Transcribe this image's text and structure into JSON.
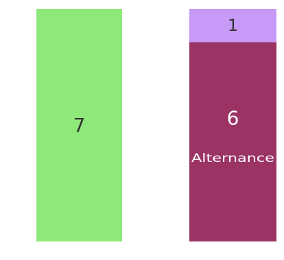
{
  "chart_data": {
    "type": "bar",
    "stacked": true,
    "categories": [
      "",
      ""
    ],
    "segments": [
      {
        "category": 0,
        "value": 7,
        "color": "#8fe87a",
        "value_label": "7",
        "label": "",
        "value_label_color": "#333333"
      },
      {
        "category": 1,
        "value": 6,
        "color": "#9b3465",
        "value_label": "6",
        "label": "Alternance",
        "value_label_color": "#ffffff"
      },
      {
        "category": 1,
        "value": 1,
        "color": "#c79af7",
        "value_label": "1",
        "label": "",
        "value_label_color": "#333333"
      }
    ],
    "ylim": [
      0,
      7
    ],
    "grid": false,
    "legend": "none",
    "title": "",
    "xlabel": "",
    "ylabel": ""
  }
}
